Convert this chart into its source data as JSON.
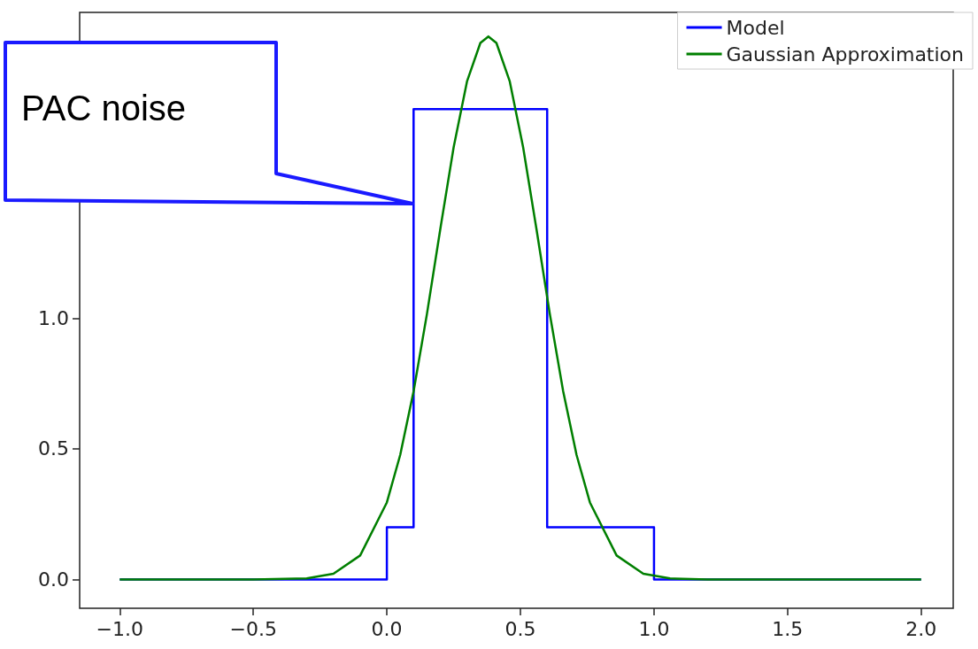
{
  "chart_data": {
    "type": "line",
    "series": [
      {
        "name": "Model",
        "type": "step",
        "color": "#0000ff",
        "x": [
          -1,
          0,
          0.1,
          0.6,
          1,
          2
        ],
        "values": [
          0,
          0.2,
          1.8,
          0.2,
          0,
          0
        ]
      },
      {
        "name": "Gaussian Approximation",
        "color": "#007f00",
        "x": [
          -1,
          -0.5,
          -0.3,
          -0.2,
          -0.1,
          0,
          0.05,
          0.1,
          0.15,
          0.2,
          0.25,
          0.3,
          0.35,
          0.38,
          0.41,
          0.46,
          0.51,
          0.56,
          0.61,
          0.66,
          0.71,
          0.76,
          0.86,
          0.96,
          1.06,
          1.2,
          1.5,
          2
        ],
        "values": [
          0,
          0,
          0.004,
          0.022,
          0.092,
          0.295,
          0.477,
          0.72,
          1.016,
          1.341,
          1.654,
          1.906,
          2.053,
          2.078,
          2.053,
          1.906,
          1.654,
          1.341,
          1.016,
          0.72,
          0.477,
          0.295,
          0.092,
          0.022,
          0.004,
          0,
          0,
          0
        ]
      }
    ],
    "xlim": [
      -1.15,
      2.12
    ],
    "xticks": [
      {
        "value": -1,
        "label": "−1.0"
      },
      {
        "value": -0.5,
        "label": "−0.5"
      },
      {
        "value": 0,
        "label": "0.0"
      },
      {
        "value": 0.5,
        "label": "0.5"
      },
      {
        "value": 1,
        "label": "1.0"
      },
      {
        "value": 1.5,
        "label": "1.5"
      },
      {
        "value": 2,
        "label": "2.0"
      }
    ],
    "ylim": [
      -0.11,
      2.17
    ],
    "yticks": [
      {
        "value": 0,
        "label": "0.0"
      },
      {
        "value": 0.5,
        "label": "0.5"
      },
      {
        "value": 1,
        "label": "1.0"
      }
    ],
    "annotations": [
      "PAC noise"
    ],
    "legend": "top right",
    "grid": false,
    "marker": "none",
    "line_style": "solid"
  }
}
